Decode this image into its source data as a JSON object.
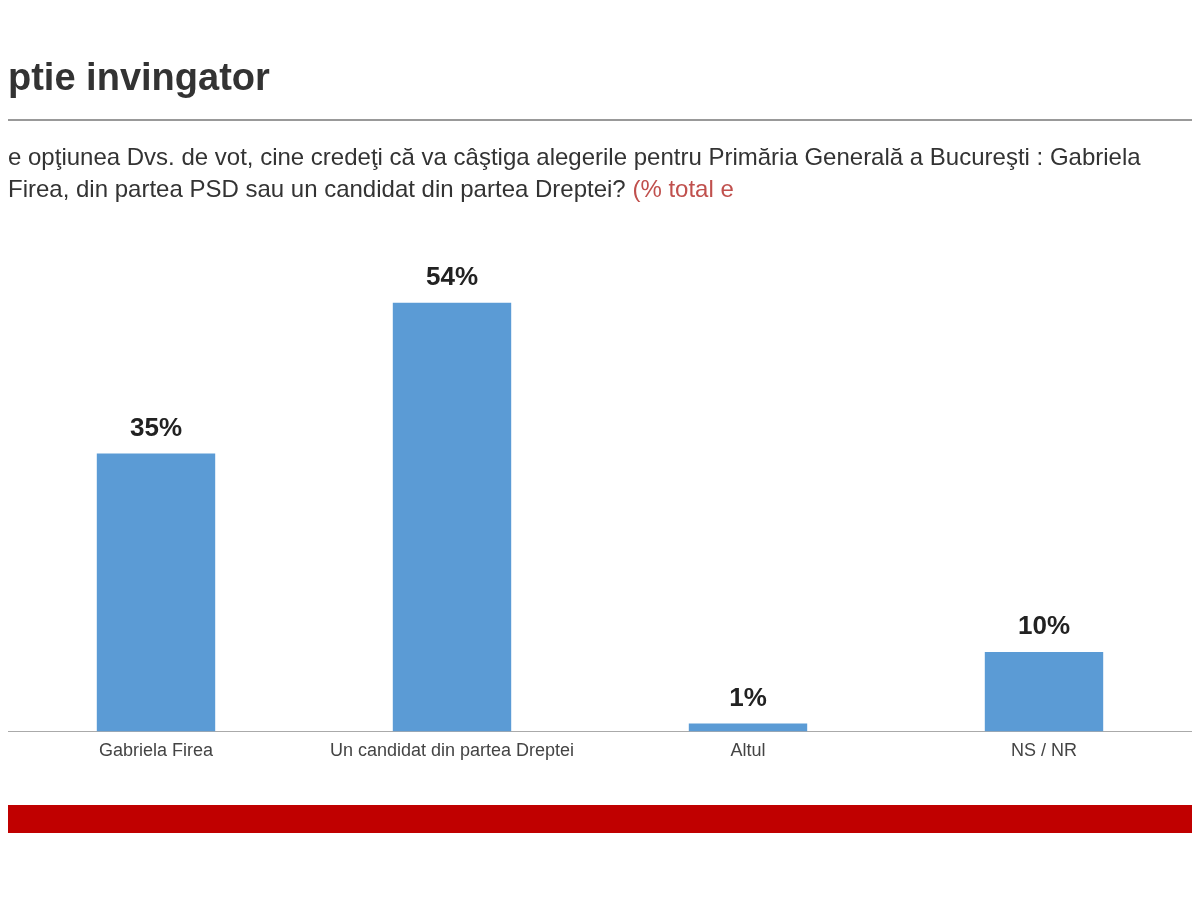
{
  "chart_data": {
    "type": "bar",
    "title": "ptie invingator",
    "subtitle": "e opţiunea Dvs. de vot, cine credeţi că va câştiga alegerile pentru Primăria Generală  a Bucureşti : Gabriela Firea, din partea PSD sau un candidat din partea Dreptei?",
    "annotations": [
      "(% total e"
    ],
    "categories": [
      "Gabriela Firea",
      "Un candidat din partea Dreptei",
      "Altul",
      "NS / NR"
    ],
    "values": [
      35,
      54,
      1,
      10
    ],
    "color": "#5b9bd5",
    "data_labels": true,
    "value_labels": [
      "35%",
      "54%",
      "1%",
      "10%"
    ],
    "grid": false,
    "legend": false
  }
}
